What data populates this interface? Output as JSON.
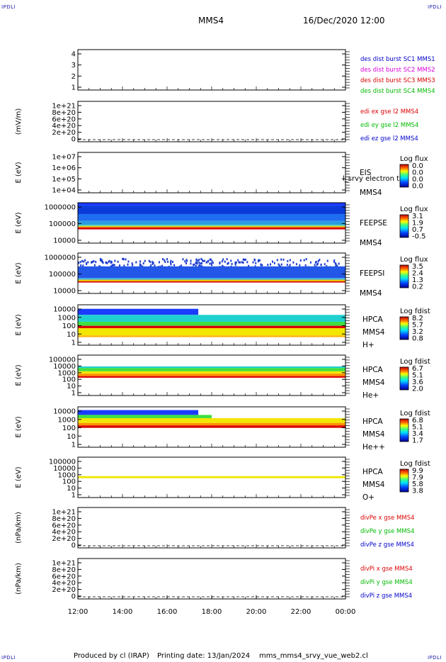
{
  "header": {
    "corner_tl": "IPDLI",
    "corner_tr": "IPDLI",
    "corner_bl": "IPDLI",
    "corner_br": "IPDLI",
    "spacecraft": "MMS4",
    "date": "16/Dec/2020 12:00"
  },
  "footer": {
    "produced": "Produced by cl (IRAP)",
    "printing": "Printing date: 13/Jan/2024",
    "file": "mms_mms4_srvy_vue_web2.cl"
  },
  "colors": {
    "mms1": "#0000cc",
    "mms2": "#dd00dd",
    "mms3": "#dd0000",
    "mms4": "#00bb00",
    "x_component": "#dd0000",
    "y_component": "#00bb00",
    "z_component": "#0000cc"
  },
  "chart_data": [
    {
      "id": "dist",
      "type": "line",
      "ylabel": "",
      "yticks": [
        "4",
        "3",
        "2",
        "1"
      ],
      "ylim": [
        0.5,
        4.5
      ],
      "legend": [
        {
          "label": "des dist burst SC1 MMS1",
          "color": "#0000cc"
        },
        {
          "label": "des dist burst SC2 MMS2",
          "color": "#dd00dd"
        },
        {
          "label": "des dist burst SC3 MMS3",
          "color": "#dd0000"
        },
        {
          "label": "des dist burst SC4 MMS4",
          "color": "#00bb00"
        }
      ],
      "series": []
    },
    {
      "id": "edi",
      "type": "line",
      "ylabel": "(mV/m)",
      "yticks": [
        "1e+21",
        "8e+20",
        "6e+20",
        "4e+20",
        "2e+20",
        "0"
      ],
      "ylim": [
        0,
        1e+21
      ],
      "zero_line": true,
      "legend": [
        {
          "label": "edi ex gse l2 MMS4",
          "color": "#dd0000"
        },
        {
          "label": "edi ey gse l2 MMS4",
          "color": "#00bb00"
        },
        {
          "label": "edi ez gse l2 MMS4",
          "color": "#0000cc"
        }
      ],
      "series": []
    },
    {
      "id": "eis",
      "type": "heatmap",
      "ylabel": "E (eV)",
      "yticks": [
        "1e+07",
        "1e+06",
        "1e+05",
        "1e+04"
      ],
      "right_labels": [
        "EIS",
        "MMS4"
      ],
      "overlay_text": "l_srvy electron to",
      "cbar_title": "Log flux",
      "cbar_ticks": [
        "0.0",
        "0.0",
        "0.0",
        "0.0"
      ],
      "bands": []
    },
    {
      "id": "feepse",
      "type": "heatmap",
      "ylabel": "E (eV)",
      "yticks": [
        "1000000",
        "100000",
        "10000"
      ],
      "right_labels": [
        "FEEPSE",
        "MMS4"
      ],
      "cbar_title": "Log flux",
      "cbar_ticks": [
        "3.1",
        "1.9",
        "0.7",
        "-0.5"
      ],
      "bands": [
        {
          "from": 0.0,
          "to": 0.08,
          "color": "#1a3cff"
        },
        {
          "from": 0.08,
          "to": 0.28,
          "color": "#0a3bd9"
        },
        {
          "from": 0.28,
          "to": 0.45,
          "color": "#1f6df0"
        },
        {
          "from": 0.45,
          "to": 0.55,
          "color": "#2a9be0"
        },
        {
          "from": 0.55,
          "to": 0.58,
          "color": "#66d8a8"
        },
        {
          "from": 0.58,
          "to": 0.61,
          "color": "#e6c800"
        },
        {
          "from": 0.61,
          "to": 0.66,
          "color": "#d90000"
        }
      ]
    },
    {
      "id": "feepsi",
      "type": "heatmap",
      "ylabel": "E (eV)",
      "yticks": [
        "1000000",
        "100000",
        "10000"
      ],
      "right_labels": [
        "FEEPSI",
        "MMS4"
      ],
      "cbar_title": "Log flux",
      "cbar_ticks": [
        "3.5",
        "2.4",
        "1.3",
        "0.2"
      ],
      "bands": [
        {
          "from": 0.12,
          "to": 0.33,
          "color": "#ffffff",
          "speckle": "#1c3ccf"
        },
        {
          "from": 0.33,
          "to": 0.62,
          "color": "#2357e8"
        },
        {
          "from": 0.62,
          "to": 0.66,
          "color": "#40b0e0"
        },
        {
          "from": 0.66,
          "to": 0.7,
          "color": "#e6c800"
        },
        {
          "from": 0.7,
          "to": 0.73,
          "color": "#d90000"
        }
      ]
    },
    {
      "id": "hpca_h",
      "type": "heatmap",
      "ylabel": "E (eV)",
      "yticks": [
        "10000",
        "1000",
        "100",
        "10",
        "1"
      ],
      "right_labels": [
        "HPCA",
        "MMS4",
        "H+"
      ],
      "cbar_title": "Log fdist",
      "cbar_ticks": [
        "8.2",
        "5.7",
        "3.2",
        "0.8"
      ],
      "bands": [
        {
          "from": 0.1,
          "to": 0.25,
          "color": "#1a3cff",
          "x_to": 0.45
        },
        {
          "from": 0.25,
          "to": 0.42,
          "color": "#1fd0d0"
        },
        {
          "from": 0.42,
          "to": 0.52,
          "color": "#3ee040"
        },
        {
          "from": 0.52,
          "to": 0.58,
          "color": "#d90000"
        },
        {
          "from": 0.58,
          "to": 0.76,
          "color": "#f2e600"
        },
        {
          "from": 0.76,
          "to": 0.8,
          "color": "#ffb000"
        }
      ]
    },
    {
      "id": "hpca_he",
      "type": "heatmap",
      "ylabel": "E (eV)",
      "yticks": [
        "100000",
        "10000",
        "1000",
        "100",
        "10",
        "1"
      ],
      "right_labels": [
        "HPCA",
        "MMS4",
        "He+"
      ],
      "cbar_title": "Log fdist",
      "cbar_ticks": [
        "6.7",
        "5.1",
        "3.6",
        "2.0"
      ],
      "bands": [
        {
          "from": 0.28,
          "to": 0.32,
          "color": "#1fd0d0"
        },
        {
          "from": 0.32,
          "to": 0.4,
          "color": "#3ee040"
        },
        {
          "from": 0.4,
          "to": 0.46,
          "color": "#f2e600"
        },
        {
          "from": 0.46,
          "to": 0.52,
          "color": "#ff9000"
        },
        {
          "from": 0.52,
          "to": 0.56,
          "color": "#d90000"
        }
      ]
    },
    {
      "id": "hpca_hepp",
      "type": "heatmap",
      "ylabel": "E (eV)",
      "yticks": [
        "10000",
        "1000",
        "100",
        "10",
        "1"
      ],
      "right_labels": [
        "HPCA",
        "MMS4",
        "He++"
      ],
      "cbar_title": "Log fdist",
      "cbar_ticks": [
        "6.8",
        "5.1",
        "3.4",
        "1.7"
      ],
      "bands": [
        {
          "from": 0.08,
          "to": 0.2,
          "color": "#1a3cff",
          "x_to": 0.45
        },
        {
          "from": 0.2,
          "to": 0.28,
          "color": "#3ee040",
          "x_to": 0.5
        },
        {
          "from": 0.28,
          "to": 0.4,
          "color": "#f2e600"
        },
        {
          "from": 0.4,
          "to": 0.46,
          "color": "#ff9000"
        },
        {
          "from": 0.46,
          "to": 0.52,
          "color": "#d90000"
        }
      ]
    },
    {
      "id": "hpca_o",
      "type": "heatmap",
      "ylabel": "E (eV)",
      "yticks": [
        "100000",
        "10000",
        "1000",
        "100",
        "10",
        "1"
      ],
      "right_labels": [
        "HPCA",
        "MMS4",
        "O+"
      ],
      "cbar_title": "Log fdist",
      "cbar_ticks": [
        "9.9",
        "7.9",
        "5.8",
        "3.8"
      ],
      "bands": [
        {
          "from": 0.47,
          "to": 0.52,
          "color": "#f2e600"
        }
      ]
    },
    {
      "id": "divpe",
      "type": "line",
      "ylabel": "(nPa/km)",
      "yticks": [
        "1e+21",
        "8e+20",
        "6e+20",
        "4e+20",
        "2e+20",
        "0"
      ],
      "ylim": [
        0,
        1e+21
      ],
      "zero_line": true,
      "legend": [
        {
          "label": "divPe x gse MMS4",
          "color": "#dd0000"
        },
        {
          "label": "divPe y gse MMS4",
          "color": "#00bb00"
        },
        {
          "label": "divPe z gse MMS4",
          "color": "#0000cc"
        }
      ],
      "series": []
    },
    {
      "id": "divpi",
      "type": "line",
      "ylabel": "(nPa/km)",
      "yticks": [
        "1e+21",
        "8e+20",
        "6e+20",
        "4e+20",
        "2e+20",
        "0"
      ],
      "ylim": [
        0,
        1e+21
      ],
      "zero_line": true,
      "legend": [
        {
          "label": "divPi x gse MMS4",
          "color": "#dd0000"
        },
        {
          "label": "divPi y gse MMS4",
          "color": "#00bb00"
        },
        {
          "label": "divPi z gse MMS4",
          "color": "#0000cc"
        }
      ],
      "series": []
    }
  ],
  "time_axis": {
    "ticks": [
      "12:00",
      "14:00",
      "16:00",
      "18:00",
      "20:00",
      "22:00",
      "00:00"
    ]
  }
}
